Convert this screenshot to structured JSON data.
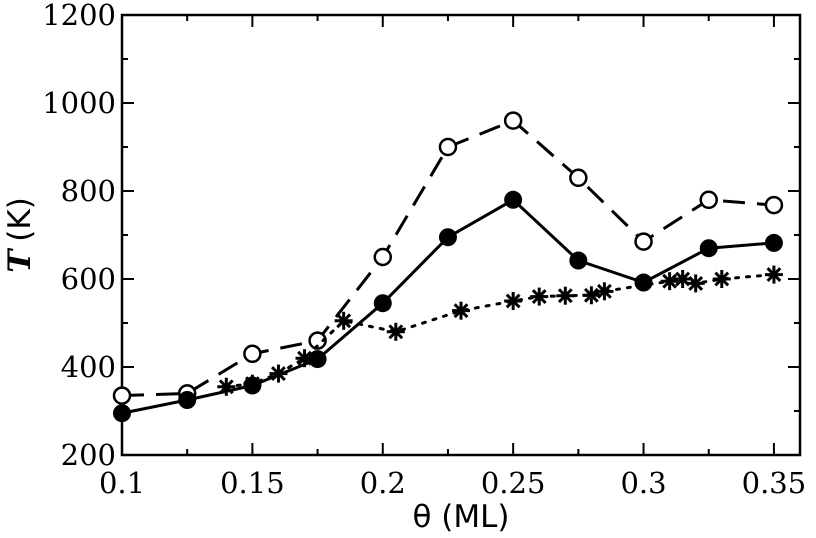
{
  "chart_data": {
    "type": "line",
    "title": "",
    "xlabel": "θ (ML)",
    "ylabel": {
      "symbol": "T",
      "unit": "(K)"
    },
    "xlim": [
      0.1,
      0.36
    ],
    "ylim": [
      200,
      1200
    ],
    "xticks": [
      0.1,
      0.15,
      0.2,
      0.25,
      0.3,
      0.35
    ],
    "xtick_labels": [
      "0.1",
      "0.15",
      "0.2",
      "0.25",
      "0.3",
      "0.35"
    ],
    "yticks": [
      200,
      400,
      600,
      800,
      1000,
      1200
    ],
    "ytick_labels": [
      "200",
      "400",
      "600",
      "800",
      "1000",
      "1200"
    ],
    "grid": false,
    "legend": null,
    "series": [
      {
        "name": "open circles (dashed)",
        "marker": "open-circle",
        "line": "dashed",
        "x": [
          0.1,
          0.125,
          0.15,
          0.175,
          0.2,
          0.225,
          0.25,
          0.275,
          0.3,
          0.325,
          0.35
        ],
        "y": [
          335,
          340,
          430,
          460,
          650,
          900,
          960,
          830,
          685,
          780,
          768
        ]
      },
      {
        "name": "filled circles (solid)",
        "marker": "filled-circle",
        "line": "solid",
        "x": [
          0.1,
          0.125,
          0.15,
          0.175,
          0.2,
          0.225,
          0.25,
          0.275,
          0.3,
          0.325,
          0.35
        ],
        "y": [
          295,
          325,
          358,
          418,
          545,
          695,
          780,
          642,
          592,
          670,
          682
        ]
      },
      {
        "name": "asterisks (dotted)",
        "marker": "asterisk",
        "line": "dotted",
        "x": [
          0.14,
          0.15,
          0.16,
          0.17,
          0.185,
          0.205,
          0.23,
          0.25,
          0.26,
          0.27,
          0.28,
          0.285,
          0.31,
          0.315,
          0.32,
          0.33,
          0.35
        ],
        "y": [
          355,
          362,
          385,
          420,
          505,
          480,
          528,
          550,
          560,
          562,
          563,
          572,
          595,
          600,
          590,
          600,
          610
        ]
      }
    ]
  }
}
